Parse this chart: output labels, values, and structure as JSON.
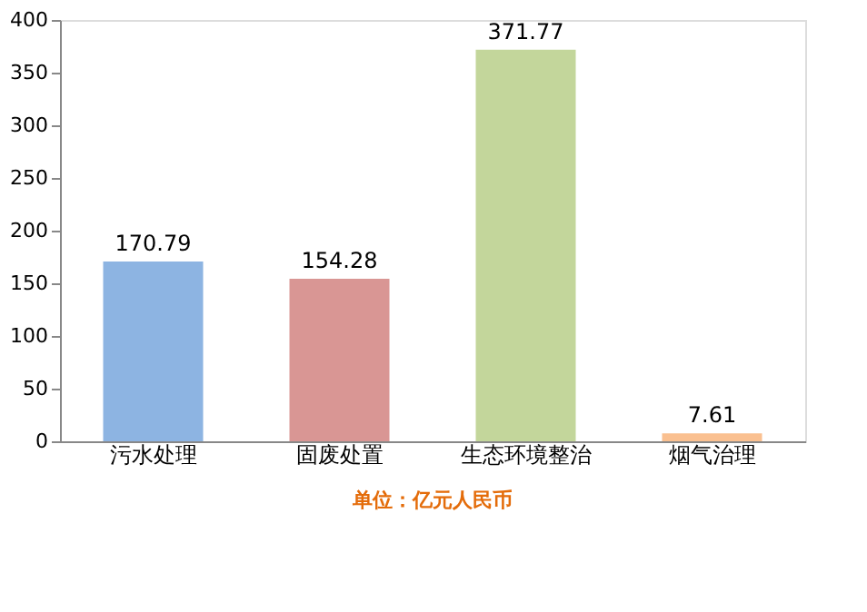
{
  "chart_data": {
    "type": "bar",
    "categories": [
      "污水处理",
      "固废处置",
      "生态环境整治",
      "烟气治理"
    ],
    "values": [
      170.79,
      154.28,
      371.77,
      7.61
    ],
    "colors": [
      "#8db4e2",
      "#d99694",
      "#c3d69b",
      "#fac090"
    ],
    "ylim": [
      0,
      400
    ],
    "yticks": [
      0,
      50,
      100,
      150,
      200,
      250,
      300,
      350,
      400
    ],
    "grid": false,
    "data_labels": true,
    "annotations": [
      "单位：亿元人民币"
    ]
  }
}
